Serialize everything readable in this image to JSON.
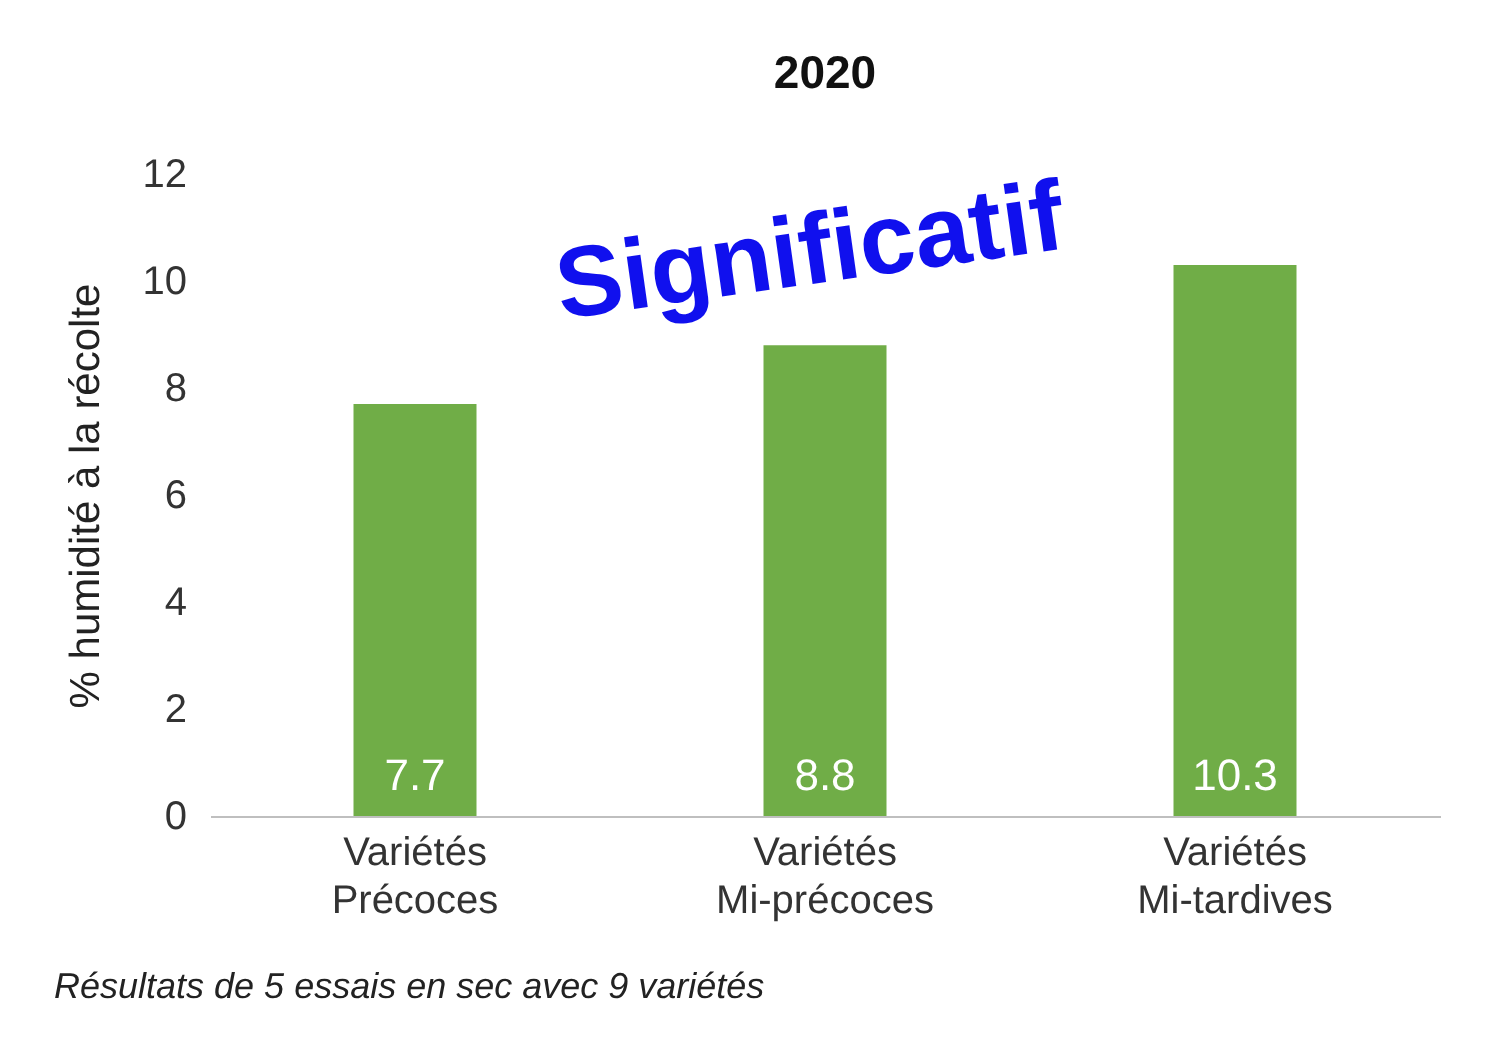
{
  "chart_data": {
    "type": "bar",
    "title": "2020",
    "ylabel": "% humidité à la récolte",
    "categories": [
      "Variétés\nPrécoces",
      "Variétés\nMi-précoces",
      "Variétés\nMi-tardives"
    ],
    "values": [
      7.7,
      8.8,
      10.3
    ],
    "color": "#70ad47",
    "ylim": [
      0,
      12
    ],
    "yticks": [
      0,
      2,
      4,
      6,
      8,
      10,
      12
    ],
    "grid": false,
    "data_labels": true,
    "annotations": [
      "Significatif",
      "Résultats de 5 essais en sec avec 9 variétés"
    ]
  }
}
